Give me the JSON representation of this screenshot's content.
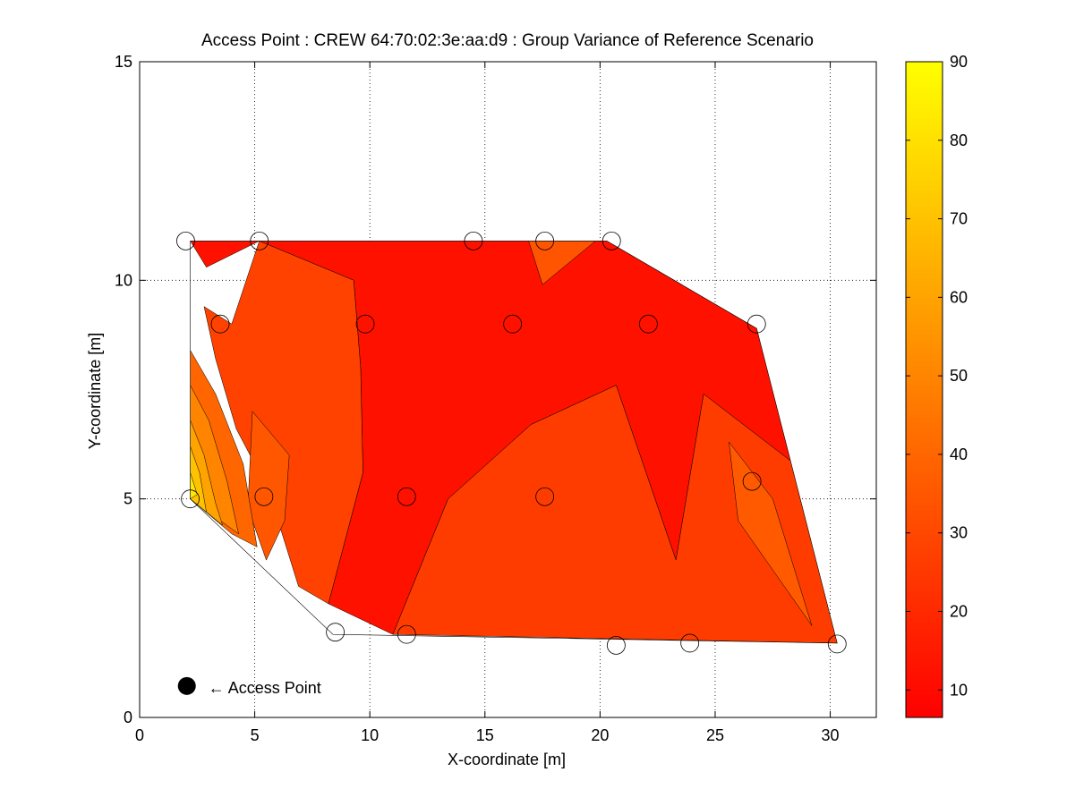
{
  "chart_data": {
    "type": "contour",
    "title": "Access Point : CREW 64:70:02:3e:aa:d9 : Group Variance of Reference Scenario",
    "xlabel": "X-coordinate [m]",
    "ylabel": "Y-coordinate [m]",
    "xlim": [
      0,
      32
    ],
    "ylim": [
      0,
      15
    ],
    "xticks": [
      "0",
      "5",
      "10",
      "15",
      "20",
      "25",
      "30"
    ],
    "yticks": [
      "0",
      "5",
      "10",
      "15"
    ],
    "grid": true,
    "colorbar": {
      "colormap": "autumn",
      "range": [
        6.5,
        90
      ],
      "ticks": [
        "10",
        "20",
        "30",
        "40",
        "50",
        "60",
        "70",
        "80",
        "90"
      ],
      "color_low": "#ff0000",
      "color_high": "#ffff00"
    },
    "region_outline": [
      [
        2.2,
        10.9
      ],
      [
        20.3,
        10.9
      ],
      [
        26.8,
        8.9
      ],
      [
        30.3,
        1.7
      ],
      [
        8.4,
        1.9
      ],
      [
        2.2,
        5.0
      ]
    ],
    "contour_fills": [
      {
        "level": 12,
        "polygon": [
          [
            2.2,
            10.9
          ],
          [
            20.3,
            10.9
          ],
          [
            26.8,
            8.9
          ],
          [
            28.7,
            5.7
          ],
          [
            24.5,
            7.4
          ],
          [
            23.3,
            3.6
          ],
          [
            20.7,
            7.6
          ],
          [
            17.0,
            6.7
          ],
          [
            13.4,
            5.0
          ],
          [
            11.0,
            1.9
          ],
          [
            8.2,
            2.6
          ],
          [
            9.7,
            5.6
          ],
          [
            9.6,
            8.0
          ],
          [
            9.3,
            10.0
          ],
          [
            5.2,
            10.9
          ],
          [
            2.9,
            10.3
          ]
        ]
      },
      {
        "level": 28,
        "polygon": [
          [
            5.2,
            10.9
          ],
          [
            9.3,
            10.0
          ],
          [
            9.6,
            8.0
          ],
          [
            9.7,
            5.6
          ],
          [
            8.2,
            2.6
          ],
          [
            6.9,
            3.0
          ],
          [
            5.6,
            5.2
          ],
          [
            4.2,
            6.6
          ],
          [
            3.3,
            8.2
          ],
          [
            2.8,
            9.4
          ],
          [
            4.0,
            9.0
          ]
        ]
      },
      {
        "level": 26,
        "polygon": [
          [
            13.4,
            5.0
          ],
          [
            17.0,
            6.7
          ],
          [
            20.7,
            7.6
          ],
          [
            23.3,
            3.6
          ],
          [
            24.5,
            7.4
          ],
          [
            28.7,
            5.7
          ],
          [
            30.3,
            1.7
          ],
          [
            11.0,
            1.9
          ]
        ]
      },
      {
        "level": 35,
        "polygon": [
          [
            4.9,
            7.0
          ],
          [
            6.5,
            6.0
          ],
          [
            6.3,
            4.5
          ],
          [
            5.5,
            3.6
          ],
          [
            4.7,
            4.8
          ]
        ]
      },
      {
        "level": 36,
        "polygon": [
          [
            25.6,
            6.3
          ],
          [
            27.5,
            5.0
          ],
          [
            29.2,
            2.1
          ],
          [
            26.0,
            4.5
          ]
        ]
      },
      {
        "level": 34,
        "polygon": [
          [
            16.9,
            10.9
          ],
          [
            19.8,
            10.9
          ],
          [
            17.5,
            9.9
          ]
        ]
      },
      {
        "level": 40,
        "polygon": [
          [
            2.2,
            8.4
          ],
          [
            3.3,
            7.4
          ],
          [
            4.5,
            5.8
          ],
          [
            5.1,
            3.9
          ],
          [
            4.0,
            4.2
          ],
          [
            2.2,
            5.0
          ]
        ]
      },
      {
        "level": 50,
        "polygon": [
          [
            2.2,
            7.6
          ],
          [
            3.0,
            6.8
          ],
          [
            3.8,
            5.4
          ],
          [
            4.3,
            4.2
          ],
          [
            2.2,
            5.0
          ]
        ]
      },
      {
        "level": 60,
        "polygon": [
          [
            2.2,
            6.8
          ],
          [
            2.8,
            6.0
          ],
          [
            3.3,
            4.9
          ],
          [
            3.6,
            4.4
          ],
          [
            2.2,
            5.0
          ]
        ]
      },
      {
        "level": 70,
        "polygon": [
          [
            2.2,
            6.2
          ],
          [
            2.6,
            5.6
          ],
          [
            2.9,
            4.7
          ],
          [
            2.2,
            5.0
          ]
        ]
      },
      {
        "level": 82,
        "polygon": [
          [
            2.2,
            5.6
          ],
          [
            2.5,
            5.1
          ],
          [
            2.2,
            5.0
          ]
        ]
      }
    ],
    "measurement_points": [
      [
        2.0,
        10.9
      ],
      [
        5.2,
        10.9
      ],
      [
        14.5,
        10.9
      ],
      [
        17.6,
        10.9
      ],
      [
        20.5,
        10.9
      ],
      [
        3.5,
        9.0
      ],
      [
        9.8,
        9.0
      ],
      [
        16.2,
        9.0
      ],
      [
        22.1,
        9.0
      ],
      [
        26.8,
        9.0
      ],
      [
        2.2,
        5.0
      ],
      [
        5.4,
        5.05
      ],
      [
        11.6,
        5.05
      ],
      [
        17.6,
        5.05
      ],
      [
        26.6,
        5.4
      ],
      [
        8.5,
        1.95
      ],
      [
        11.6,
        1.9
      ],
      [
        20.7,
        1.65
      ],
      [
        23.9,
        1.7
      ],
      [
        30.3,
        1.68
      ]
    ],
    "access_point": {
      "x": 2.05,
      "y": 0.72,
      "label": "← Access Point"
    }
  }
}
